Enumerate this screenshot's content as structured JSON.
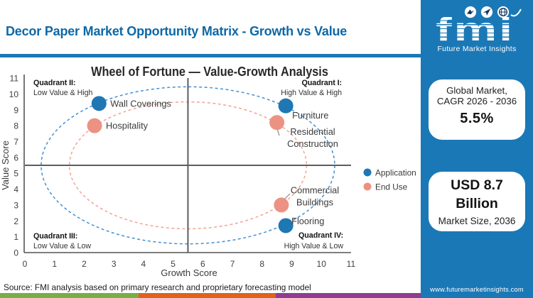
{
  "header": {
    "title": "Decor Paper Market Opportunity Matrix - Growth vs Value"
  },
  "source_note": "Source: FMI analysis based on primary research and proprietary forecasting model",
  "footer": {
    "website": "www.futuremarketinsights.com"
  },
  "sidebar": {
    "bg_color": "#1b78b6",
    "logo": {
      "text": "fmi",
      "tagline": "Future Market Insights",
      "icons": [
        "bird-icon",
        "paper-plane-icon",
        "globe-icon"
      ]
    },
    "stat_boxes": [
      {
        "line1": "Global Market,",
        "line2": "CAGR 2026 - 2036",
        "value": "5.5%"
      },
      {
        "value_line1": "USD 8.7",
        "value_line2": "Billion",
        "label": "Market Size, 2036"
      }
    ]
  },
  "chart_data": {
    "type": "scatter",
    "title": "Wheel of Fortune — Value-Growth Analysis",
    "xlabel": "Growth Score",
    "ylabel": "Value Score",
    "xlim": [
      0,
      11
    ],
    "ylim": [
      0,
      11
    ],
    "xticks": [
      0,
      1,
      2,
      3,
      4,
      5,
      6,
      7,
      8,
      9,
      10,
      11
    ],
    "yticks": [
      0,
      1,
      2,
      3,
      4,
      5,
      6,
      7,
      8,
      9,
      10,
      11
    ],
    "grid": false,
    "quadrant_center": [
      5.5,
      5.5
    ],
    "quadrants": [
      {
        "name": "Quadrant I:",
        "desc": "High Value & High",
        "position": "top-right"
      },
      {
        "name": "Quadrant II:",
        "desc": "Low Value & High",
        "position": "top-left"
      },
      {
        "name": "Quadrant III:",
        "desc": "Low Value & Low",
        "position": "bottom-left"
      },
      {
        "name": "Quadrant IV:",
        "desc": "High Value & Low",
        "position": "bottom-right"
      }
    ],
    "series": [
      {
        "name": "Application",
        "color": "#1f77b4",
        "ring_color": "#4390d2",
        "ring_radius": 4.95,
        "points": [
          {
            "label": "Wall Coverings",
            "x": 2.5,
            "y": 9.4
          },
          {
            "label": "Furniture",
            "x": 8.8,
            "y": 9.25
          },
          {
            "label": "Flooring",
            "x": 8.8,
            "y": 1.7
          }
        ]
      },
      {
        "name": "End Use",
        "color": "#ec9282",
        "ring_color": "#f2a492",
        "ring_radius": 4.0,
        "points": [
          {
            "label": "Hospitality",
            "x": 2.35,
            "y": 8.0
          },
          {
            "label": "Residential Construction",
            "x": 8.5,
            "y": 8.2
          },
          {
            "label": "Commercial Buildings",
            "x": 8.65,
            "y": 3.0
          }
        ]
      }
    ],
    "legend_position": "right"
  }
}
